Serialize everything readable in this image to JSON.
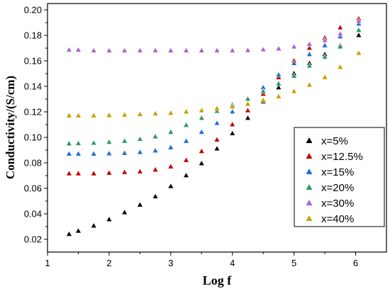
{
  "chart_data": {
    "type": "scatter",
    "xlabel": "Log f",
    "ylabel": "Conductivity/(S/cm)",
    "xlim": [
      1,
      6.5
    ],
    "ylim": [
      0.01,
      0.205
    ],
    "x_ticks": [
      "1",
      "2",
      "3",
      "4",
      "5",
      "6"
    ],
    "y_ticks": [
      "0.02",
      "0.04",
      "0.06",
      "0.08",
      "0.10",
      "0.12",
      "0.14",
      "0.16",
      "0.18",
      "0.20"
    ],
    "legend_position": "right",
    "marker": "triangle-up",
    "series": [
      {
        "name": "x=5%",
        "color": "#000000",
        "x": [
          1.35,
          1.5,
          1.75,
          2.0,
          2.25,
          2.5,
          2.75,
          3.0,
          3.25,
          3.5,
          3.75,
          4.0,
          4.25,
          4.5,
          4.75,
          5.0,
          5.25,
          5.5,
          5.75,
          6.05
        ],
        "values": [
          0.024,
          0.0265,
          0.0305,
          0.0355,
          0.041,
          0.047,
          0.0535,
          0.0615,
          0.07,
          0.0795,
          0.091,
          0.103,
          0.115,
          0.128,
          0.139,
          0.15,
          0.158,
          0.165,
          0.172,
          0.18
        ]
      },
      {
        "name": "x=12.5%",
        "color": "#c00000",
        "x": [
          1.35,
          1.5,
          1.75,
          2.0,
          2.25,
          2.5,
          2.75,
          3.0,
          3.25,
          3.5,
          3.75,
          4.0,
          4.25,
          4.5,
          4.75,
          5.0,
          5.25,
          5.5,
          5.75,
          6.05
        ],
        "values": [
          0.0715,
          0.0715,
          0.0715,
          0.072,
          0.0725,
          0.073,
          0.0745,
          0.077,
          0.082,
          0.089,
          0.098,
          0.11,
          0.121,
          0.134,
          0.147,
          0.16,
          0.17,
          0.178,
          0.186,
          0.193
        ]
      },
      {
        "name": "x=15%",
        "color": "#1f6fd1",
        "x": [
          1.35,
          1.5,
          1.75,
          2.0,
          2.25,
          2.5,
          2.75,
          3.0,
          3.25,
          3.5,
          3.75,
          4.0,
          4.25,
          4.5,
          4.75,
          5.0,
          5.25,
          5.5,
          5.75,
          6.05
        ],
        "values": [
          0.087,
          0.087,
          0.087,
          0.0872,
          0.0875,
          0.0882,
          0.0895,
          0.092,
          0.097,
          0.104,
          0.111,
          0.12,
          0.13,
          0.139,
          0.149,
          0.158,
          0.165,
          0.172,
          0.179,
          0.189
        ]
      },
      {
        "name": "x=20%",
        "color": "#2e9a5f",
        "x": [
          1.35,
          1.5,
          1.75,
          2.0,
          2.25,
          2.5,
          2.75,
          3.0,
          3.25,
          3.5,
          3.75,
          4.0,
          4.25,
          4.5,
          4.75,
          5.0,
          5.25,
          5.5,
          5.75,
          6.05
        ],
        "values": [
          0.095,
          0.0952,
          0.0955,
          0.0962,
          0.097,
          0.0985,
          0.1005,
          0.104,
          0.1095,
          0.115,
          0.1205,
          0.1255,
          0.13,
          0.136,
          0.142,
          0.148,
          0.156,
          0.163,
          0.171,
          0.184
        ]
      },
      {
        "name": "x=30%",
        "color": "#a466d1",
        "x": [
          1.35,
          1.5,
          1.75,
          2.0,
          2.25,
          2.5,
          2.75,
          3.0,
          3.25,
          3.5,
          3.75,
          4.0,
          4.25,
          4.5,
          4.75,
          5.0,
          5.25,
          5.5,
          5.75,
          6.05
        ],
        "values": [
          0.1685,
          0.1685,
          0.168,
          0.168,
          0.168,
          0.168,
          0.168,
          0.168,
          0.168,
          0.168,
          0.168,
          0.168,
          0.1682,
          0.1688,
          0.1695,
          0.171,
          0.173,
          0.176,
          0.181,
          0.191
        ]
      },
      {
        "name": "x=40%",
        "color": "#c9a000",
        "x": [
          1.35,
          1.5,
          1.75,
          2.0,
          2.25,
          2.5,
          2.75,
          3.0,
          3.25,
          3.5,
          3.75,
          4.0,
          4.25,
          4.5,
          4.75,
          5.0,
          5.25,
          5.5,
          5.75,
          6.05
        ],
        "values": [
          0.117,
          0.117,
          0.117,
          0.1172,
          0.1175,
          0.118,
          0.1185,
          0.119,
          0.12,
          0.121,
          0.1225,
          0.124,
          0.126,
          0.129,
          0.132,
          0.136,
          0.141,
          0.147,
          0.155,
          0.166
        ]
      }
    ]
  }
}
